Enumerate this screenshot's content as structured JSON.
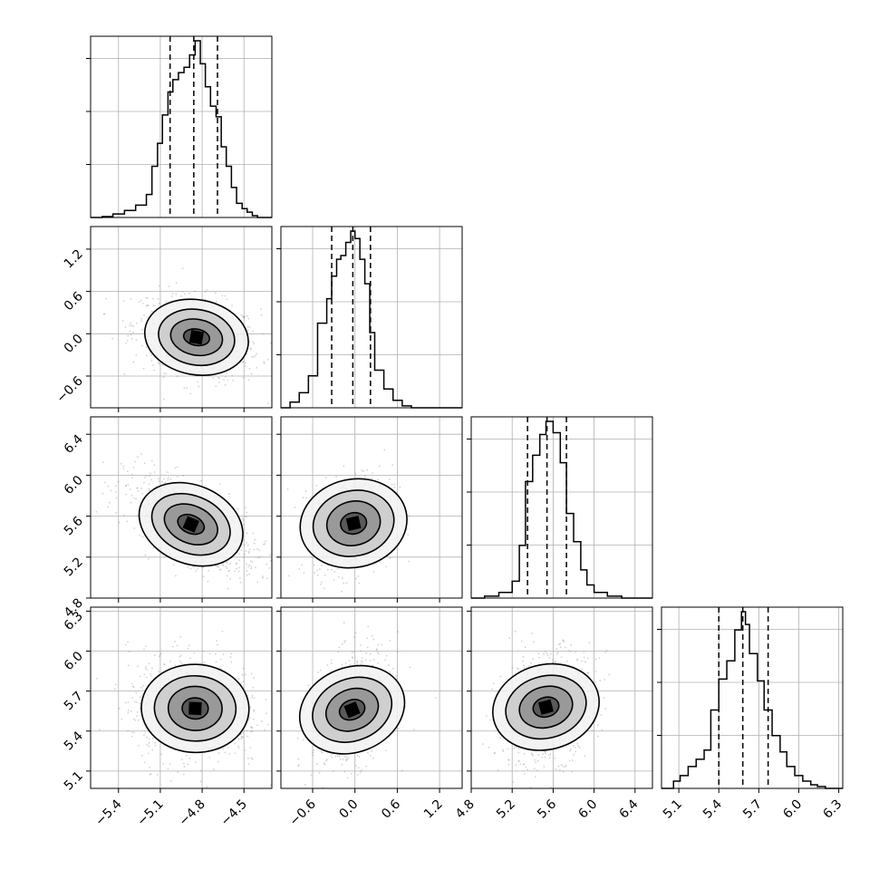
{
  "chart_data": {
    "type": "corner",
    "parameters": 4,
    "colors": {
      "axes": "#000000",
      "grid": "#b0b0b0",
      "hist": "#000000",
      "points": "#7f7f7f",
      "quantile": "#000000"
    },
    "grid": true,
    "axes": [
      {
        "lim": [
          -5.6,
          -4.3
        ],
        "ticks": [
          -5.4,
          -5.1,
          -4.8,
          -4.5
        ],
        "tick_labels": [
          "−5.4",
          "−5.1",
          "−4.8",
          "−4.5"
        ]
      },
      {
        "lim": [
          -1.05,
          1.52
        ],
        "ticks": [
          -0.6,
          0.0,
          0.6,
          1.2
        ],
        "tick_labels": [
          "−0.6",
          "0.0",
          "0.6",
          "1.2"
        ]
      },
      {
        "lim": [
          4.8,
          6.57
        ],
        "ticks": [
          4.8,
          5.2,
          5.6,
          6.0,
          6.4
        ],
        "tick_labels": [
          "4.8",
          "5.2",
          "5.6",
          "6.0",
          "6.4"
        ]
      },
      {
        "lim": [
          4.97,
          6.33
        ],
        "ticks": [
          5.1,
          5.4,
          5.7,
          6.0,
          6.3
        ],
        "tick_labels": [
          "5.1",
          "5.4",
          "5.7",
          "6.0",
          "6.3"
        ]
      }
    ],
    "histograms": [
      {
        "quantiles": [
          -5.03,
          -4.86,
          -4.69
        ],
        "bins": [
          {
            "x0": -5.6,
            "x1": -5.517,
            "count": 0
          },
          {
            "x0": -5.517,
            "x1": -5.44,
            "count": 0.5
          },
          {
            "x0": -5.44,
            "x1": -5.357,
            "count": 2
          },
          {
            "x0": -5.357,
            "x1": -5.277,
            "count": 4
          },
          {
            "x0": -5.277,
            "x1": -5.2,
            "count": 7
          },
          {
            "x0": -5.2,
            "x1": -5.16,
            "count": 13
          },
          {
            "x0": -5.16,
            "x1": -5.12,
            "count": 29
          },
          {
            "x0": -5.12,
            "x1": -5.085,
            "count": 42
          },
          {
            "x0": -5.085,
            "x1": -5.045,
            "count": 58
          },
          {
            "x0": -5.045,
            "x1": -5.01,
            "count": 71
          },
          {
            "x0": -5.01,
            "x1": -4.97,
            "count": 78
          },
          {
            "x0": -4.97,
            "x1": -4.93,
            "count": 82
          },
          {
            "x0": -4.93,
            "x1": -4.89,
            "count": 85
          },
          {
            "x0": -4.89,
            "x1": -4.85,
            "count": 92
          },
          {
            "x0": -4.85,
            "x1": -4.813,
            "count": 100
          },
          {
            "x0": -4.813,
            "x1": -4.777,
            "count": 87
          },
          {
            "x0": -4.777,
            "x1": -4.74,
            "count": 74
          },
          {
            "x0": -4.74,
            "x1": -4.7,
            "count": 63
          },
          {
            "x0": -4.7,
            "x1": -4.663,
            "count": 57
          },
          {
            "x0": -4.663,
            "x1": -4.627,
            "count": 40
          },
          {
            "x0": -4.627,
            "x1": -4.59,
            "count": 29
          },
          {
            "x0": -4.59,
            "x1": -4.553,
            "count": 17
          },
          {
            "x0": -4.553,
            "x1": -4.513,
            "count": 8
          },
          {
            "x0": -4.513,
            "x1": -4.477,
            "count": 5
          },
          {
            "x0": -4.477,
            "x1": -4.44,
            "count": 3
          },
          {
            "x0": -4.44,
            "x1": -4.403,
            "count": 1
          },
          {
            "x0": -4.403,
            "x1": -4.3,
            "count": 0
          }
        ]
      },
      {
        "quantiles": [
          -0.33,
          -0.03,
          0.22
        ],
        "bins": [
          {
            "x0": -1.05,
            "x1": -0.92,
            "count": 0
          },
          {
            "x0": -0.92,
            "x1": -0.79,
            "count": 3
          },
          {
            "x0": -0.79,
            "x1": -0.66,
            "count": 8
          },
          {
            "x0": -0.66,
            "x1": -0.53,
            "count": 17
          },
          {
            "x0": -0.53,
            "x1": -0.4,
            "count": 45
          },
          {
            "x0": -0.4,
            "x1": -0.33,
            "count": 58
          },
          {
            "x0": -0.33,
            "x1": -0.26,
            "count": 70
          },
          {
            "x0": -0.26,
            "x1": -0.2,
            "count": 79
          },
          {
            "x0": -0.2,
            "x1": -0.13,
            "count": 81
          },
          {
            "x0": -0.13,
            "x1": -0.06,
            "count": 88
          },
          {
            "x0": -0.06,
            "x1": 0.0,
            "count": 94
          },
          {
            "x0": 0.0,
            "x1": 0.07,
            "count": 90
          },
          {
            "x0": 0.07,
            "x1": 0.14,
            "count": 79
          },
          {
            "x0": 0.14,
            "x1": 0.21,
            "count": 66
          },
          {
            "x0": 0.21,
            "x1": 0.28,
            "count": 40
          },
          {
            "x0": 0.28,
            "x1": 0.41,
            "count": 20
          },
          {
            "x0": 0.41,
            "x1": 0.54,
            "count": 10
          },
          {
            "x0": 0.54,
            "x1": 0.67,
            "count": 4
          },
          {
            "x0": 0.67,
            "x1": 0.8,
            "count": 1
          },
          {
            "x0": 0.8,
            "x1": 1.52,
            "count": 0
          }
        ]
      },
      {
        "quantiles": [
          5.35,
          5.54,
          5.73
        ],
        "bins": [
          {
            "x0": 4.8,
            "x1": 4.93,
            "count": 0
          },
          {
            "x0": 4.93,
            "x1": 5.07,
            "count": 1
          },
          {
            "x0": 5.07,
            "x1": 5.2,
            "count": 3
          },
          {
            "x0": 5.2,
            "x1": 5.27,
            "count": 9
          },
          {
            "x0": 5.27,
            "x1": 5.33,
            "count": 28
          },
          {
            "x0": 5.33,
            "x1": 5.4,
            "count": 62
          },
          {
            "x0": 5.4,
            "x1": 5.47,
            "count": 76
          },
          {
            "x0": 5.47,
            "x1": 5.53,
            "count": 87
          },
          {
            "x0": 5.53,
            "x1": 5.6,
            "count": 94
          },
          {
            "x0": 5.6,
            "x1": 5.67,
            "count": 88
          },
          {
            "x0": 5.67,
            "x1": 5.73,
            "count": 72
          },
          {
            "x0": 5.73,
            "x1": 5.8,
            "count": 45
          },
          {
            "x0": 5.8,
            "x1": 5.87,
            "count": 30
          },
          {
            "x0": 5.87,
            "x1": 5.93,
            "count": 15
          },
          {
            "x0": 5.93,
            "x1": 6.0,
            "count": 7
          },
          {
            "x0": 6.0,
            "x1": 6.13,
            "count": 3
          },
          {
            "x0": 6.13,
            "x1": 6.27,
            "count": 1
          },
          {
            "x0": 6.27,
            "x1": 6.57,
            "count": 0
          }
        ]
      },
      {
        "quantiles": [
          5.4,
          5.58,
          5.77
        ],
        "bins": [
          {
            "x0": 4.97,
            "x1": 5.06,
            "count": 0
          },
          {
            "x0": 5.06,
            "x1": 5.11,
            "count": 4
          },
          {
            "x0": 5.11,
            "x1": 5.17,
            "count": 7
          },
          {
            "x0": 5.17,
            "x1": 5.23,
            "count": 12
          },
          {
            "x0": 5.23,
            "x1": 5.29,
            "count": 16
          },
          {
            "x0": 5.29,
            "x1": 5.34,
            "count": 21
          },
          {
            "x0": 5.34,
            "x1": 5.4,
            "count": 43
          },
          {
            "x0": 5.4,
            "x1": 5.46,
            "count": 60
          },
          {
            "x0": 5.46,
            "x1": 5.52,
            "count": 70
          },
          {
            "x0": 5.52,
            "x1": 5.57,
            "count": 87
          },
          {
            "x0": 5.57,
            "x1": 5.6,
            "count": 97
          },
          {
            "x0": 5.6,
            "x1": 5.63,
            "count": 90
          },
          {
            "x0": 5.63,
            "x1": 5.69,
            "count": 74
          },
          {
            "x0": 5.69,
            "x1": 5.74,
            "count": 59
          },
          {
            "x0": 5.74,
            "x1": 5.8,
            "count": 43
          },
          {
            "x0": 5.8,
            "x1": 5.86,
            "count": 29
          },
          {
            "x0": 5.86,
            "x1": 5.91,
            "count": 20
          },
          {
            "x0": 5.91,
            "x1": 5.97,
            "count": 12
          },
          {
            "x0": 5.97,
            "x1": 6.03,
            "count": 7
          },
          {
            "x0": 6.03,
            "x1": 6.09,
            "count": 4
          },
          {
            "x0": 6.09,
            "x1": 6.14,
            "count": 2
          },
          {
            "x0": 6.14,
            "x1": 6.2,
            "count": 1
          },
          {
            "x0": 6.2,
            "x1": 6.33,
            "count": 0
          }
        ]
      }
    ],
    "pairs": [
      {
        "x": 0,
        "y": 1,
        "center": [
          -4.84,
          -0.05
        ],
        "sd": [
          0.19,
          0.25
        ],
        "corr": -0.3,
        "contours": [
          {
            "r": [
              0.16,
              0.1
            ]
          },
          {
            "r": [
              0.32,
              0.22
            ]
          },
          {
            "r": [
              0.47,
              0.34
            ]
          },
          {
            "r": [
              0.64,
              0.46
            ]
          }
        ]
      },
      {
        "x": 0,
        "y": 2,
        "center": [
          -4.88,
          5.52
        ],
        "sd": [
          0.2,
          0.2
        ],
        "corr": -0.65,
        "contours": [
          {
            "r": [
              0.17,
              0.11
            ]
          },
          {
            "r": [
              0.34,
              0.23
            ]
          },
          {
            "r": [
              0.5,
              0.35
            ]
          },
          {
            "r": [
              0.66,
              0.48
            ]
          }
        ]
      },
      {
        "x": 1,
        "y": 2,
        "center": [
          -0.02,
          5.53
        ],
        "sd": [
          0.23,
          0.2
        ],
        "corr": 0.2,
        "contours": [
          {
            "r": [
              0.16,
              0.13
            ]
          },
          {
            "r": [
              0.33,
              0.27
            ]
          },
          {
            "r": [
              0.5,
              0.4
            ]
          },
          {
            "r": [
              0.66,
              0.54
            ]
          }
        ]
      },
      {
        "x": 0,
        "y": 3,
        "center": [
          -4.85,
          5.57
        ],
        "sd": [
          0.2,
          0.18
        ],
        "corr": -0.05,
        "contours": [
          {
            "r": [
              0.16,
              0.13
            ]
          },
          {
            "r": [
              0.33,
              0.27
            ]
          },
          {
            "r": [
              0.5,
              0.4
            ]
          },
          {
            "r": [
              0.66,
              0.54
            ]
          }
        ]
      },
      {
        "x": 1,
        "y": 3,
        "center": [
          -0.04,
          5.56
        ],
        "sd": [
          0.23,
          0.18
        ],
        "corr": 0.3,
        "contours": [
          {
            "r": [
              0.16,
              0.12
            ]
          },
          {
            "r": [
              0.33,
              0.25
            ]
          },
          {
            "r": [
              0.5,
              0.38
            ]
          },
          {
            "r": [
              0.66,
              0.52
            ]
          }
        ]
      },
      {
        "x": 2,
        "y": 3,
        "center": [
          5.53,
          5.58
        ],
        "sd": [
          0.2,
          0.18
        ],
        "corr": 0.25,
        "contours": [
          {
            "r": [
              0.16,
              0.12
            ]
          },
          {
            "r": [
              0.33,
              0.25
            ]
          },
          {
            "r": [
              0.5,
              0.38
            ]
          },
          {
            "r": [
              0.66,
              0.52
            ]
          }
        ]
      }
    ]
  }
}
